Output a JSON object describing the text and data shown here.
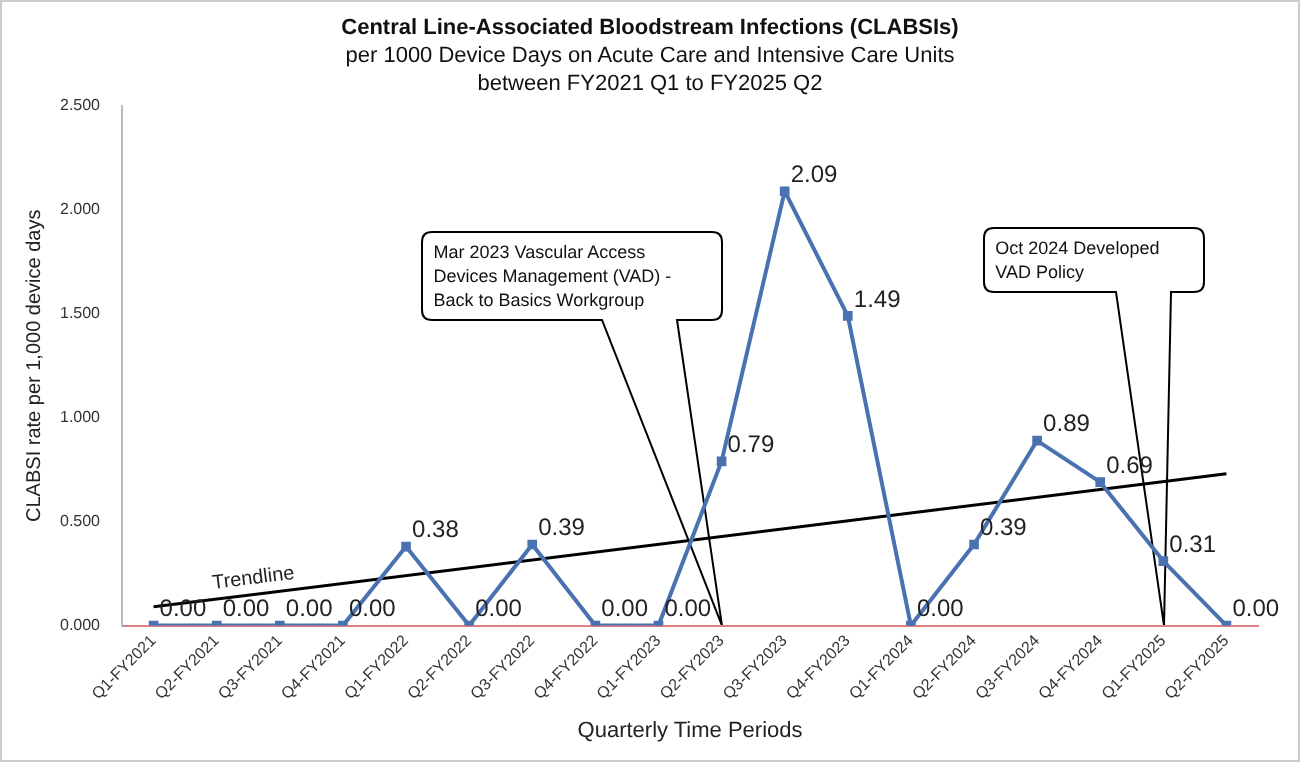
{
  "chart_data": {
    "type": "line",
    "title": "Central Line-Associated Bloodstream Infections (CLABSIs)",
    "subtitle": "per 1000 Device Days on Acute Care and Intensive Care Units\nbetween FY2021 Q1 to FY2025 Q2",
    "xlabel": "Quarterly Time Periods",
    "ylabel": "CLABSI rate per 1,000 device days",
    "categories": [
      "Q1-FY2021",
      "Q2-FY2021",
      "Q3-FY2021",
      "Q4-FY2021",
      "Q1-FY2022",
      "Q2-FY2022",
      "Q3-FY2022",
      "Q4-FY2022",
      "Q1-FY2023",
      "Q2-FY2023",
      "Q3-FY2023",
      "Q4-FY2023",
      "Q1-FY2024",
      "Q2-FY2024",
      "Q3-FY2024",
      "Q4-FY2024",
      "Q1-FY2025",
      "Q2-FY2025"
    ],
    "series": [
      {
        "color": "#4a72b0",
        "values": [
          0,
          0,
          0,
          0,
          0.38,
          0,
          0.39,
          0,
          0,
          0.79,
          2.09,
          1.49,
          0,
          0.39,
          0.89,
          0.69,
          0.31,
          0
        ],
        "value_labels": [
          "0.00",
          "0.00",
          "0.00",
          "0.00",
          "0.38",
          "0.00",
          "0.39",
          "0.00",
          "0.00",
          "0.79",
          "2.09",
          "1.49",
          "0.00",
          "0.39",
          "0.89",
          "0.69",
          "0.31",
          "0.00"
        ]
      },
      {
        "name": "Trendline",
        "type": "line",
        "color": "#000000",
        "marker": "none",
        "values": [
          0.09,
          null,
          null,
          null,
          null,
          null,
          null,
          null,
          null,
          null,
          null,
          null,
          null,
          null,
          null,
          null,
          null,
          0.73
        ]
      }
    ],
    "ylim": [
      0,
      2.5
    ],
    "yticks": [
      {
        "value": 0,
        "label": "0.000"
      },
      {
        "value": 0.5,
        "label": "0.500"
      },
      {
        "value": 1,
        "label": "1.000"
      },
      {
        "value": 1.5,
        "label": "1.500"
      },
      {
        "value": 2,
        "label": "2.000"
      },
      {
        "value": 2.5,
        "label": "2.500"
      }
    ],
    "grid": false,
    "legend": false,
    "marker": "square",
    "line_style": "solid",
    "annotations": [
      "Mar 2023 Vascular Access Devices Management (VAD) - Back to Basics Workgroup",
      "Oct 2024 Developed VAD Policy"
    ]
  }
}
